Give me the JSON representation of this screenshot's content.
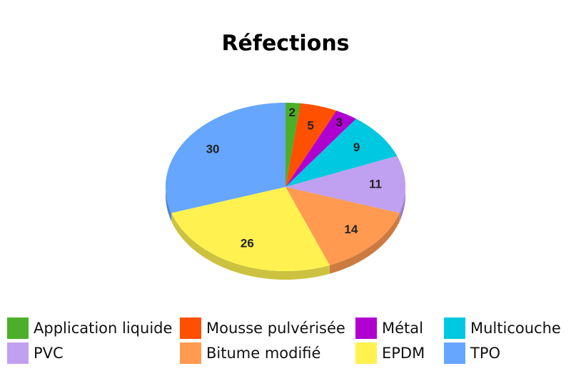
{
  "chart_data": {
    "type": "pie",
    "title": "Réfections",
    "categories": [
      "Application liquide",
      "Mousse pulvérisée",
      "Métal",
      "Multicouche",
      "PVC",
      "Bitume modifié",
      "EPDM",
      "TPO"
    ],
    "values": [
      2,
      5,
      3,
      9,
      11,
      14,
      26,
      30
    ],
    "colors": [
      "#4caf2a",
      "#ff5000",
      "#b000d0",
      "#00c8e0",
      "#c0a0f0",
      "#ff9a50",
      "#fff250",
      "#66a6ff"
    ]
  }
}
